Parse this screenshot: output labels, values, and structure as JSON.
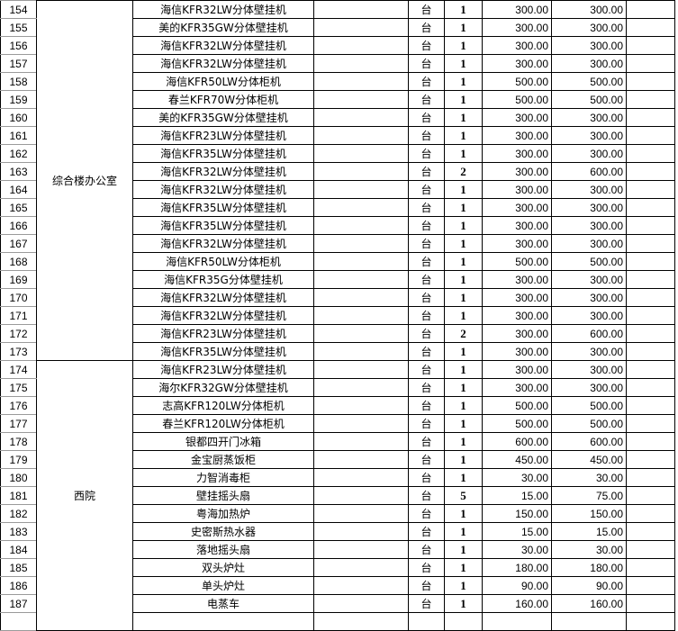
{
  "groups": [
    {
      "location": "综合楼办公室",
      "rows": [
        {
          "no": "154",
          "name": "海信KFR32LW分体壁挂机",
          "unit": "台",
          "qty": "1",
          "price": "300.00",
          "total": "300.00"
        },
        {
          "no": "155",
          "name": "美的KFR35GW分体壁挂机",
          "unit": "台",
          "qty": "1",
          "price": "300.00",
          "total": "300.00"
        },
        {
          "no": "156",
          "name": "海信KFR32LW分体壁挂机",
          "unit": "台",
          "qty": "1",
          "price": "300.00",
          "total": "300.00"
        },
        {
          "no": "157",
          "name": "海信KFR32LW分体壁挂机",
          "unit": "台",
          "qty": "1",
          "price": "300.00",
          "total": "300.00"
        },
        {
          "no": "158",
          "name": "海信KFR50LW分体柜机",
          "unit": "台",
          "qty": "1",
          "price": "500.00",
          "total": "500.00"
        },
        {
          "no": "159",
          "name": "春兰KFR70W分体柜机",
          "unit": "台",
          "qty": "1",
          "price": "500.00",
          "total": "500.00"
        },
        {
          "no": "160",
          "name": "美的KFR35GW分体壁挂机",
          "unit": "台",
          "qty": "1",
          "price": "300.00",
          "total": "300.00"
        },
        {
          "no": "161",
          "name": "海信KFR23LW分体壁挂机",
          "unit": "台",
          "qty": "1",
          "price": "300.00",
          "total": "300.00"
        },
        {
          "no": "162",
          "name": "海信KFR35LW分体壁挂机",
          "unit": "台",
          "qty": "1",
          "price": "300.00",
          "total": "300.00"
        },
        {
          "no": "163",
          "name": "海信KFR32LW分体壁挂机",
          "unit": "台",
          "qty": "2",
          "price": "300.00",
          "total": "600.00"
        },
        {
          "no": "164",
          "name": "海信KFR32LW分体壁挂机",
          "unit": "台",
          "qty": "1",
          "price": "300.00",
          "total": "300.00"
        },
        {
          "no": "165",
          "name": "海信KFR35LW分体壁挂机",
          "unit": "台",
          "qty": "1",
          "price": "300.00",
          "total": "300.00"
        },
        {
          "no": "166",
          "name": "海信KFR35LW分体壁挂机",
          "unit": "台",
          "qty": "1",
          "price": "300.00",
          "total": "300.00"
        },
        {
          "no": "167",
          "name": "海信KFR32LW分体壁挂机",
          "unit": "台",
          "qty": "1",
          "price": "300.00",
          "total": "300.00"
        },
        {
          "no": "168",
          "name": "海信KFR50LW分体柜机",
          "unit": "台",
          "qty": "1",
          "price": "500.00",
          "total": "500.00"
        },
        {
          "no": "169",
          "name": "海信KFR35G分体壁挂机",
          "unit": "台",
          "qty": "1",
          "price": "300.00",
          "total": "300.00"
        },
        {
          "no": "170",
          "name": "海信KFR32LW分体壁挂机",
          "unit": "台",
          "qty": "1",
          "price": "300.00",
          "total": "300.00"
        },
        {
          "no": "171",
          "name": "海信KFR32LW分体壁挂机",
          "unit": "台",
          "qty": "1",
          "price": "300.00",
          "total": "300.00"
        },
        {
          "no": "172",
          "name": "海信KFR23LW分体壁挂机",
          "unit": "台",
          "qty": "2",
          "price": "300.00",
          "total": "600.00"
        },
        {
          "no": "173",
          "name": "海信KFR35LW分体壁挂机",
          "unit": "台",
          "qty": "1",
          "price": "300.00",
          "total": "300.00"
        }
      ]
    },
    {
      "location": "西院",
      "rows": [
        {
          "no": "174",
          "name": "海信KFR23LW分体壁挂机",
          "unit": "台",
          "qty": "1",
          "price": "300.00",
          "total": "300.00"
        },
        {
          "no": "175",
          "name": "海尔KFR32GW分体壁挂机",
          "unit": "台",
          "qty": "1",
          "price": "300.00",
          "total": "300.00"
        },
        {
          "no": "176",
          "name": "志高KFR120LW分体柜机",
          "unit": "台",
          "qty": "1",
          "price": "500.00",
          "total": "500.00"
        },
        {
          "no": "177",
          "name": "春兰KFR120LW分体柜机",
          "unit": "台",
          "qty": "1",
          "price": "500.00",
          "total": "500.00"
        },
        {
          "no": "178",
          "name": "银都四开门冰箱",
          "unit": "台",
          "qty": "1",
          "price": "600.00",
          "total": "600.00"
        },
        {
          "no": "179",
          "name": "金宝厨蒸饭柜",
          "unit": "台",
          "qty": "1",
          "price": "450.00",
          "total": "450.00"
        },
        {
          "no": "180",
          "name": "力智消毒柜",
          "unit": "台",
          "qty": "1",
          "price": "30.00",
          "total": "30.00"
        },
        {
          "no": "181",
          "name": "壁挂摇头扇",
          "unit": "台",
          "qty": "5",
          "price": "15.00",
          "total": "75.00"
        },
        {
          "no": "182",
          "name": "粤海加热炉",
          "unit": "台",
          "qty": "1",
          "price": "150.00",
          "total": "150.00"
        },
        {
          "no": "183",
          "name": "史密斯热水器",
          "unit": "台",
          "qty": "1",
          "price": "15.00",
          "total": "15.00"
        },
        {
          "no": "184",
          "name": "落地摇头扇",
          "unit": "台",
          "qty": "1",
          "price": "30.00",
          "total": "30.00"
        },
        {
          "no": "185",
          "name": "双头炉灶",
          "unit": "台",
          "qty": "1",
          "price": "180.00",
          "total": "180.00"
        },
        {
          "no": "186",
          "name": "单头炉灶",
          "unit": "台",
          "qty": "1",
          "price": "90.00",
          "total": "90.00"
        },
        {
          "no": "187",
          "name": "电蒸车",
          "unit": "台",
          "qty": "1",
          "price": "160.00",
          "total": "160.00"
        }
      ]
    }
  ]
}
